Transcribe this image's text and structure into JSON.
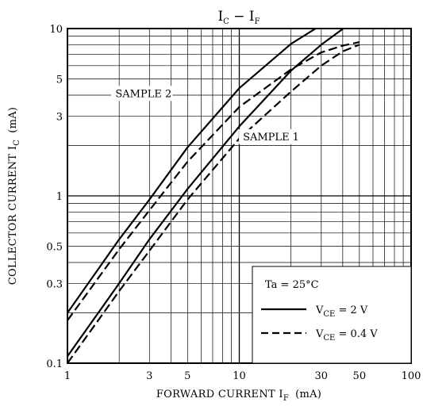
{
  "chart_data": {
    "type": "line",
    "title": {
      "main1": "I",
      "sub1": "C",
      "dash": " − ",
      "main2": "I",
      "sub2": "F"
    },
    "xlabel": {
      "text": "FORWARD CURRENT  I",
      "sub": "F",
      "unit": "(mA)"
    },
    "ylabel": {
      "text": "COLLECTOR CURRENT  I",
      "sub": "C",
      "unit": "(mA)"
    },
    "x_scale": "log",
    "y_scale": "log",
    "xlim": [
      1,
      100
    ],
    "ylim": [
      0.1,
      10
    ],
    "grid": true,
    "x_ticks": [
      {
        "v": 1,
        "label": "1"
      },
      {
        "v": 3,
        "label": "3"
      },
      {
        "v": 5,
        "label": "5"
      },
      {
        "v": 10,
        "label": "10"
      },
      {
        "v": 30,
        "label": "30"
      },
      {
        "v": 50,
        "label": "50"
      },
      {
        "v": 100,
        "label": "100"
      }
    ],
    "y_ticks": [
      {
        "v": 0.1,
        "label": "0.1"
      },
      {
        "v": 0.3,
        "label": "0.3"
      },
      {
        "v": 0.5,
        "label": "0.5"
      },
      {
        "v": 1,
        "label": "1"
      },
      {
        "v": 3,
        "label": "3"
      },
      {
        "v": 5,
        "label": "5"
      },
      {
        "v": 10,
        "label": "10"
      }
    ],
    "annotations": [
      {
        "text": "SAMPLE 2",
        "x": 1.9,
        "y": 3.9
      },
      {
        "text": "SAMPLE 1",
        "x": 10.5,
        "y": 2.15
      }
    ],
    "legend": {
      "condition": "Ta = 25°C",
      "items": [
        {
          "style": "solid",
          "prefix": "V",
          "sub": "CE",
          "suffix": " = 2 V"
        },
        {
          "style": "dashed",
          "prefix": "V",
          "sub": "CE",
          "suffix": " = 0.4 V"
        }
      ]
    },
    "series": [
      {
        "sample": "SAMPLE 2",
        "style": "solid",
        "x": [
          1,
          2,
          3,
          5,
          10,
          20,
          30,
          34
        ],
        "y": [
          0.2,
          0.55,
          0.95,
          1.95,
          4.4,
          8.1,
          10.5,
          10.5
        ]
      },
      {
        "sample": "SAMPLE 2",
        "style": "dashed",
        "x": [
          1,
          2,
          3,
          5,
          10,
          20,
          30,
          40,
          50
        ],
        "y": [
          0.18,
          0.48,
          0.82,
          1.6,
          3.4,
          5.7,
          7.2,
          7.9,
          8.3
        ]
      },
      {
        "sample": "SAMPLE 1",
        "style": "solid",
        "x": [
          1,
          2,
          3,
          5,
          10,
          20,
          30,
          43,
          48
        ],
        "y": [
          0.11,
          0.3,
          0.55,
          1.1,
          2.6,
          5.6,
          8.0,
          10.5,
          10.5
        ]
      },
      {
        "sample": "SAMPLE 1",
        "style": "dashed",
        "x": [
          1,
          2,
          3,
          5,
          10,
          20,
          30,
          40,
          50
        ],
        "y": [
          0.1,
          0.27,
          0.47,
          0.95,
          2.2,
          4.2,
          6.0,
          7.3,
          8.0
        ]
      }
    ]
  }
}
